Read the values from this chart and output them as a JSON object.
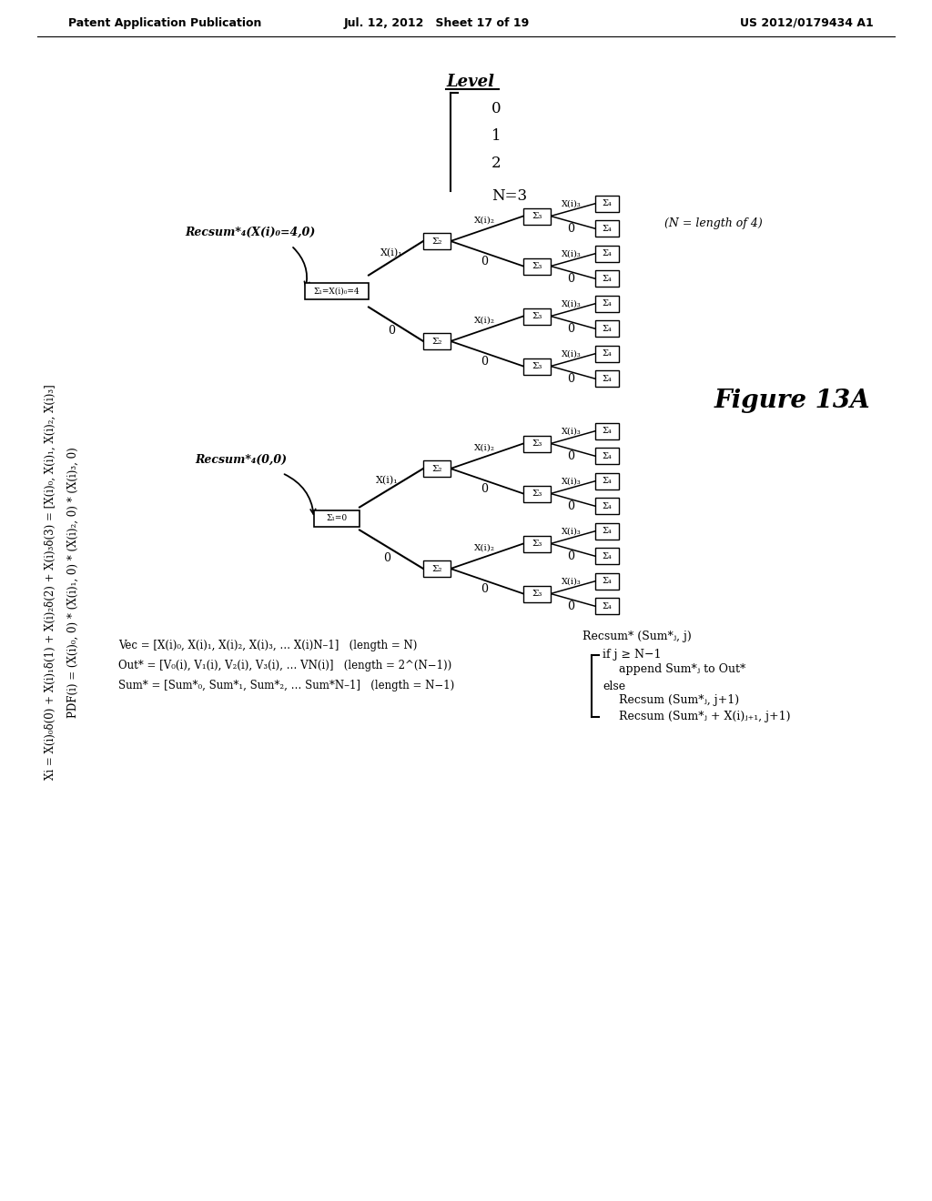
{
  "header_left": "Patent Application Publication",
  "header_mid": "Jul. 12, 2012   Sheet 17 of 19",
  "header_right": "US 2012/0179434 A1",
  "figure_label": "Figure 13A",
  "bg_color": "#ffffff"
}
